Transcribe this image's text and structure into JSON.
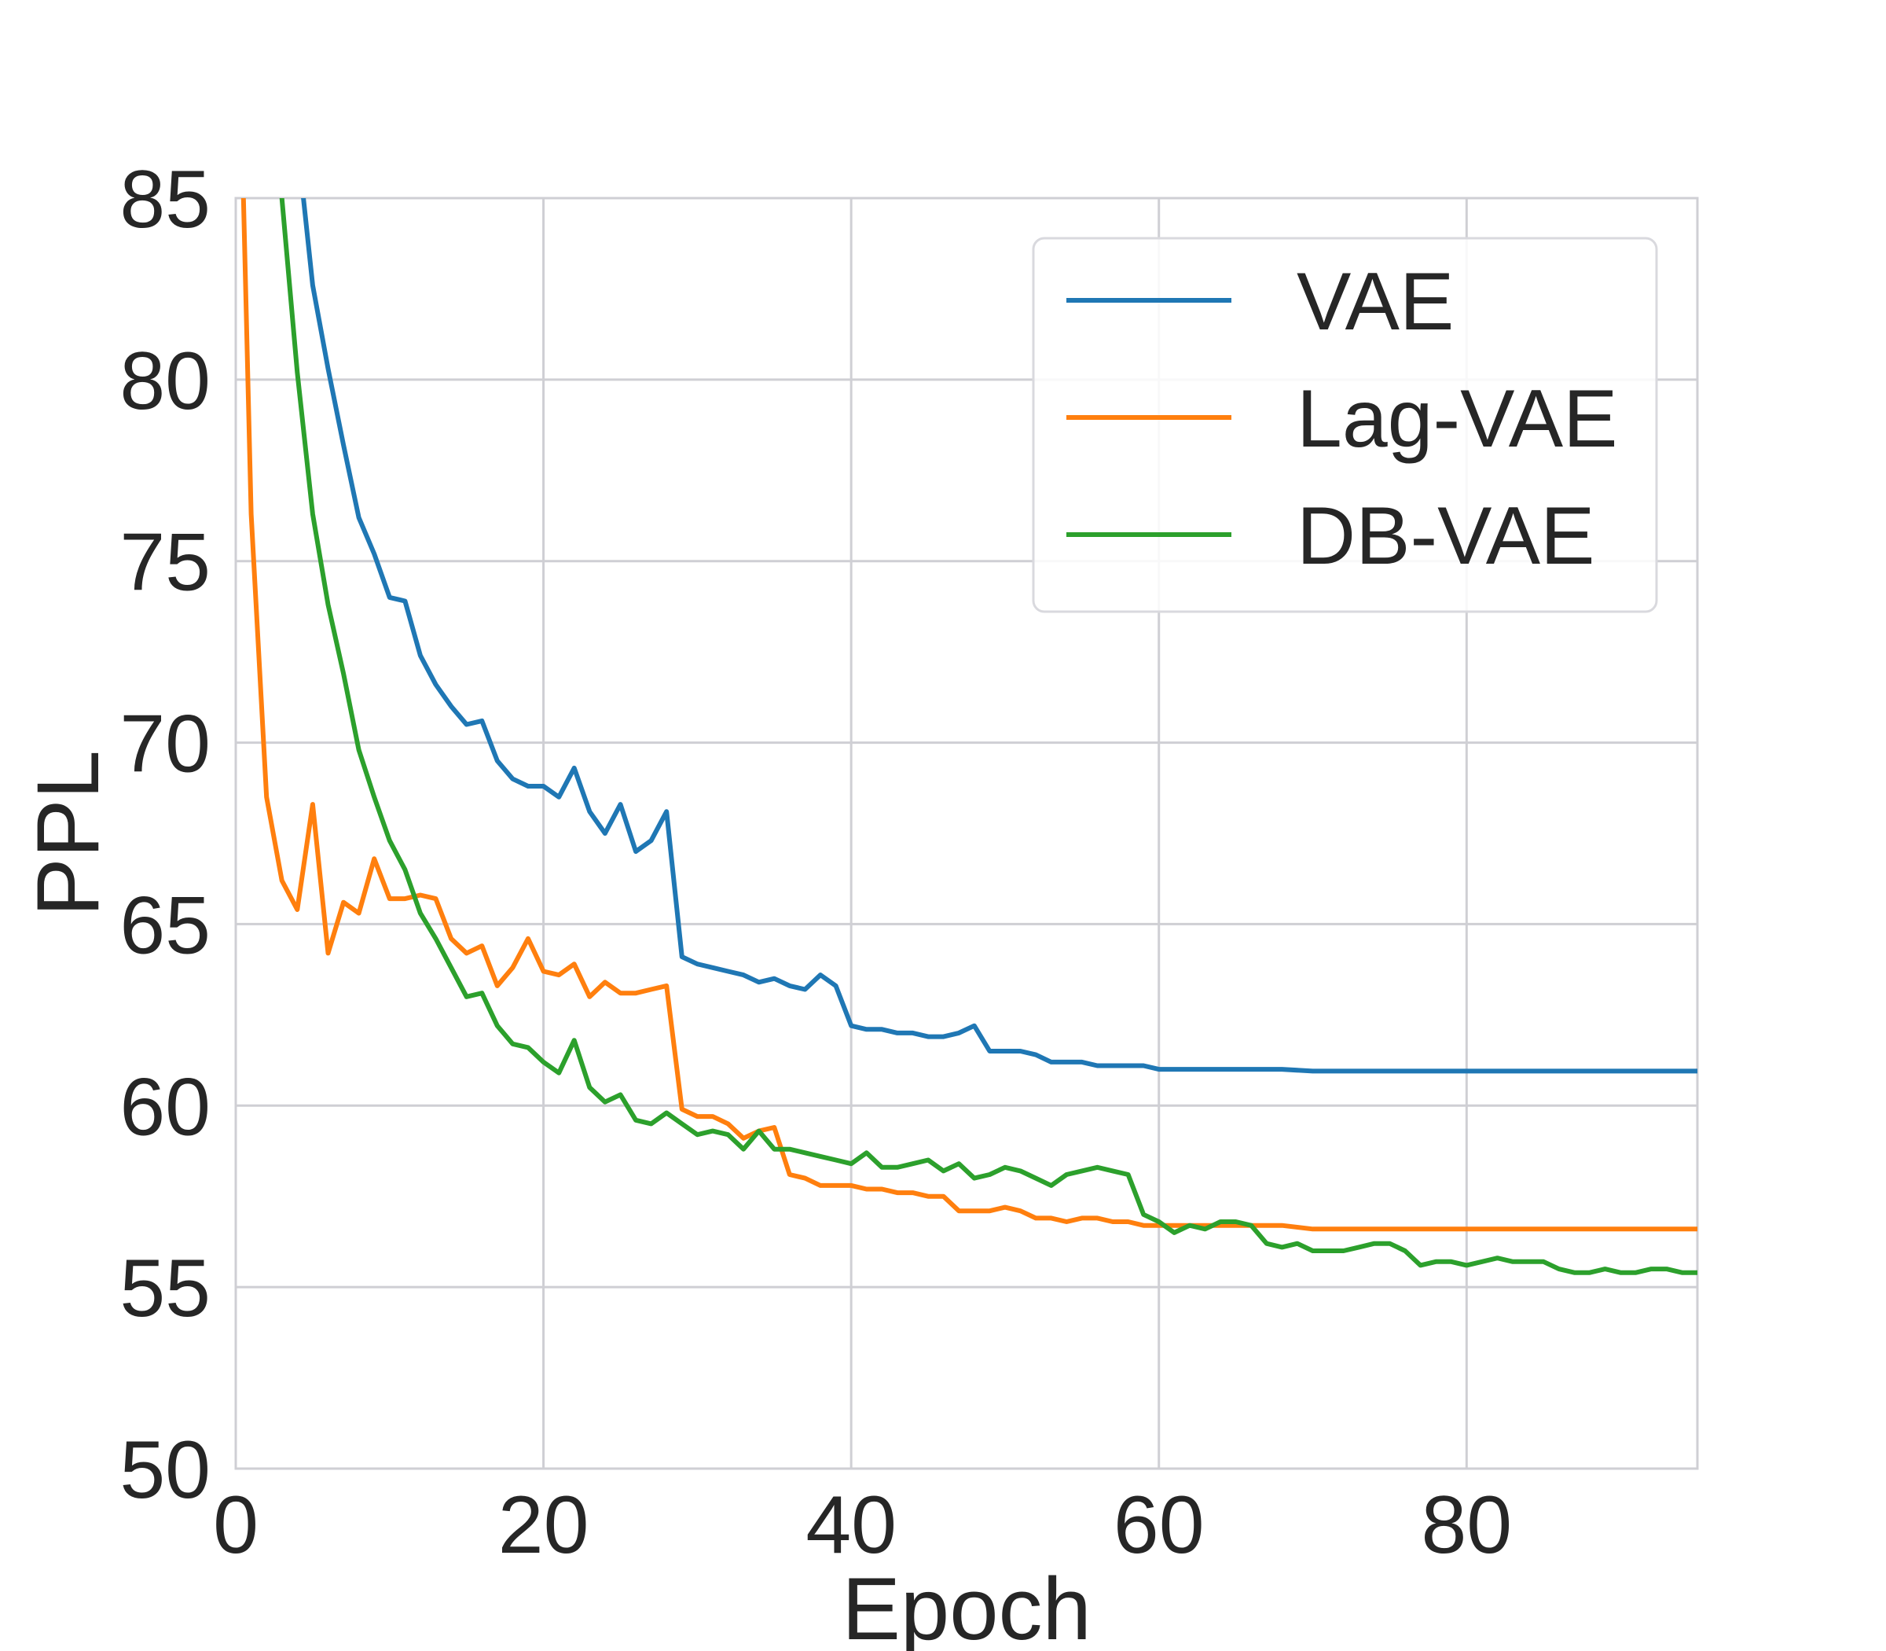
{
  "chart_data": {
    "type": "line",
    "title": "",
    "xlabel": "Epoch",
    "ylabel": "PPL",
    "xlim": [
      0,
      95
    ],
    "ylim": [
      50,
      85
    ],
    "xticks": [
      0,
      20,
      40,
      60,
      80
    ],
    "yticks": [
      50,
      55,
      60,
      65,
      70,
      75,
      80,
      85
    ],
    "grid": true,
    "legend_position": "top-right",
    "series": [
      {
        "name": "VAE",
        "color": "#1f77b4",
        "x": [
          4.4,
          5,
          6,
          7,
          8,
          9,
          10,
          11,
          12,
          13,
          14,
          15,
          16,
          17,
          18,
          19,
          20,
          21,
          22,
          23,
          24,
          25,
          26,
          27,
          28,
          29,
          30,
          31,
          32,
          33,
          34,
          35,
          36,
          37,
          38,
          39,
          40,
          41,
          42,
          43,
          44,
          45,
          46,
          47,
          48,
          49,
          50,
          51,
          52,
          53,
          54,
          55,
          56,
          57,
          58,
          59,
          60,
          62,
          64,
          66,
          68,
          70,
          72,
          74,
          76,
          78,
          80,
          82,
          84,
          86,
          88,
          90,
          92,
          94,
          95
        ],
        "y": [
          85,
          82.6,
          80.3,
          78.2,
          76.2,
          75.2,
          74.0,
          73.9,
          72.4,
          71.6,
          71.0,
          70.5,
          70.6,
          69.5,
          69.0,
          68.8,
          68.8,
          68.5,
          69.3,
          68.1,
          67.5,
          68.3,
          67.0,
          67.3,
          68.1,
          64.1,
          63.9,
          63.8,
          63.7,
          63.6,
          63.4,
          63.5,
          63.3,
          63.2,
          63.6,
          63.3,
          62.2,
          62.1,
          62.1,
          62.0,
          62.0,
          61.9,
          61.9,
          62.0,
          62.2,
          61.5,
          61.5,
          61.5,
          61.4,
          61.2,
          61.2,
          61.2,
          61.1,
          61.1,
          61.1,
          61.1,
          61.0,
          61.0,
          61.0,
          61.0,
          61.0,
          60.95,
          60.95,
          60.95,
          60.95,
          60.95,
          60.95,
          60.95,
          60.95,
          60.95,
          60.95,
          60.95,
          60.95,
          60.95,
          60.95
        ]
      },
      {
        "name": "Lag-VAE",
        "color": "#ff7f0e",
        "x": [
          0.5,
          1,
          2,
          3,
          4,
          5,
          6,
          7,
          8,
          9,
          10,
          11,
          12,
          13,
          14,
          15,
          16,
          17,
          18,
          19,
          20,
          21,
          22,
          23,
          24,
          25,
          26,
          27,
          28,
          29,
          30,
          31,
          32,
          33,
          34,
          35,
          36,
          37,
          38,
          39,
          40,
          41,
          42,
          43,
          44,
          45,
          46,
          47,
          48,
          49,
          50,
          51,
          52,
          53,
          54,
          55,
          56,
          57,
          58,
          59,
          60,
          62,
          64,
          66,
          68,
          70,
          72,
          74,
          76,
          78,
          80,
          82,
          84,
          86,
          88,
          90,
          92,
          94,
          95
        ],
        "y": [
          85,
          76.3,
          68.5,
          66.2,
          65.4,
          68.3,
          64.2,
          65.6,
          65.3,
          66.8,
          65.7,
          65.7,
          65.8,
          65.7,
          64.6,
          64.2,
          64.4,
          63.3,
          63.8,
          64.6,
          63.7,
          63.6,
          63.9,
          63.0,
          63.4,
          63.1,
          63.1,
          63.2,
          63.3,
          59.9,
          59.7,
          59.7,
          59.5,
          59.1,
          59.3,
          59.4,
          58.1,
          58.0,
          57.8,
          57.8,
          57.8,
          57.7,
          57.7,
          57.6,
          57.6,
          57.5,
          57.5,
          57.1,
          57.1,
          57.1,
          57.2,
          57.1,
          56.9,
          56.9,
          56.8,
          56.9,
          56.9,
          56.8,
          56.8,
          56.7,
          56.7,
          56.7,
          56.7,
          56.7,
          56.7,
          56.6,
          56.6,
          56.6,
          56.6,
          56.6,
          56.6,
          56.6,
          56.6,
          56.6,
          56.6,
          56.6,
          56.6,
          56.6,
          56.6
        ]
      },
      {
        "name": "DB-VAE",
        "color": "#2ca02c",
        "x": [
          3,
          4,
          5,
          6,
          7,
          8,
          9,
          10,
          11,
          12,
          13,
          14,
          15,
          16,
          17,
          18,
          19,
          20,
          21,
          22,
          23,
          24,
          25,
          26,
          27,
          28,
          29,
          30,
          31,
          32,
          33,
          34,
          35,
          36,
          37,
          38,
          39,
          40,
          41,
          42,
          43,
          44,
          45,
          46,
          47,
          48,
          49,
          50,
          51,
          52,
          53,
          54,
          55,
          56,
          57,
          58,
          59,
          60,
          61,
          62,
          63,
          64,
          65,
          66,
          67,
          68,
          69,
          70,
          71,
          72,
          73,
          74,
          75,
          76,
          77,
          78,
          79,
          80,
          81,
          82,
          83,
          84,
          85,
          86,
          87,
          88,
          89,
          90,
          91,
          92,
          93,
          94,
          95
        ],
        "y": [
          85,
          80.2,
          76.3,
          73.8,
          71.9,
          69.8,
          68.5,
          67.3,
          66.5,
          65.3,
          64.6,
          63.8,
          63.0,
          63.1,
          62.2,
          61.7,
          61.6,
          61.2,
          60.9,
          61.8,
          60.5,
          60.1,
          60.3,
          59.6,
          59.5,
          59.8,
          59.5,
          59.2,
          59.3,
          59.2,
          58.8,
          59.3,
          58.8,
          58.8,
          58.7,
          58.6,
          58.5,
          58.4,
          58.7,
          58.3,
          58.3,
          58.4,
          58.5,
          58.2,
          58.4,
          58.0,
          58.1,
          58.3,
          58.2,
          58.0,
          57.8,
          58.1,
          58.2,
          58.3,
          58.2,
          58.1,
          57.0,
          56.8,
          56.5,
          56.7,
          56.6,
          56.8,
          56.8,
          56.7,
          56.2,
          56.1,
          56.2,
          56.0,
          56.0,
          56.0,
          56.1,
          56.2,
          56.2,
          56.0,
          55.6,
          55.7,
          55.7,
          55.6,
          55.7,
          55.8,
          55.7,
          55.7,
          55.7,
          55.5,
          55.4,
          55.4,
          55.5,
          55.4,
          55.4,
          55.5,
          55.5,
          55.4,
          55.4
        ]
      }
    ]
  }
}
